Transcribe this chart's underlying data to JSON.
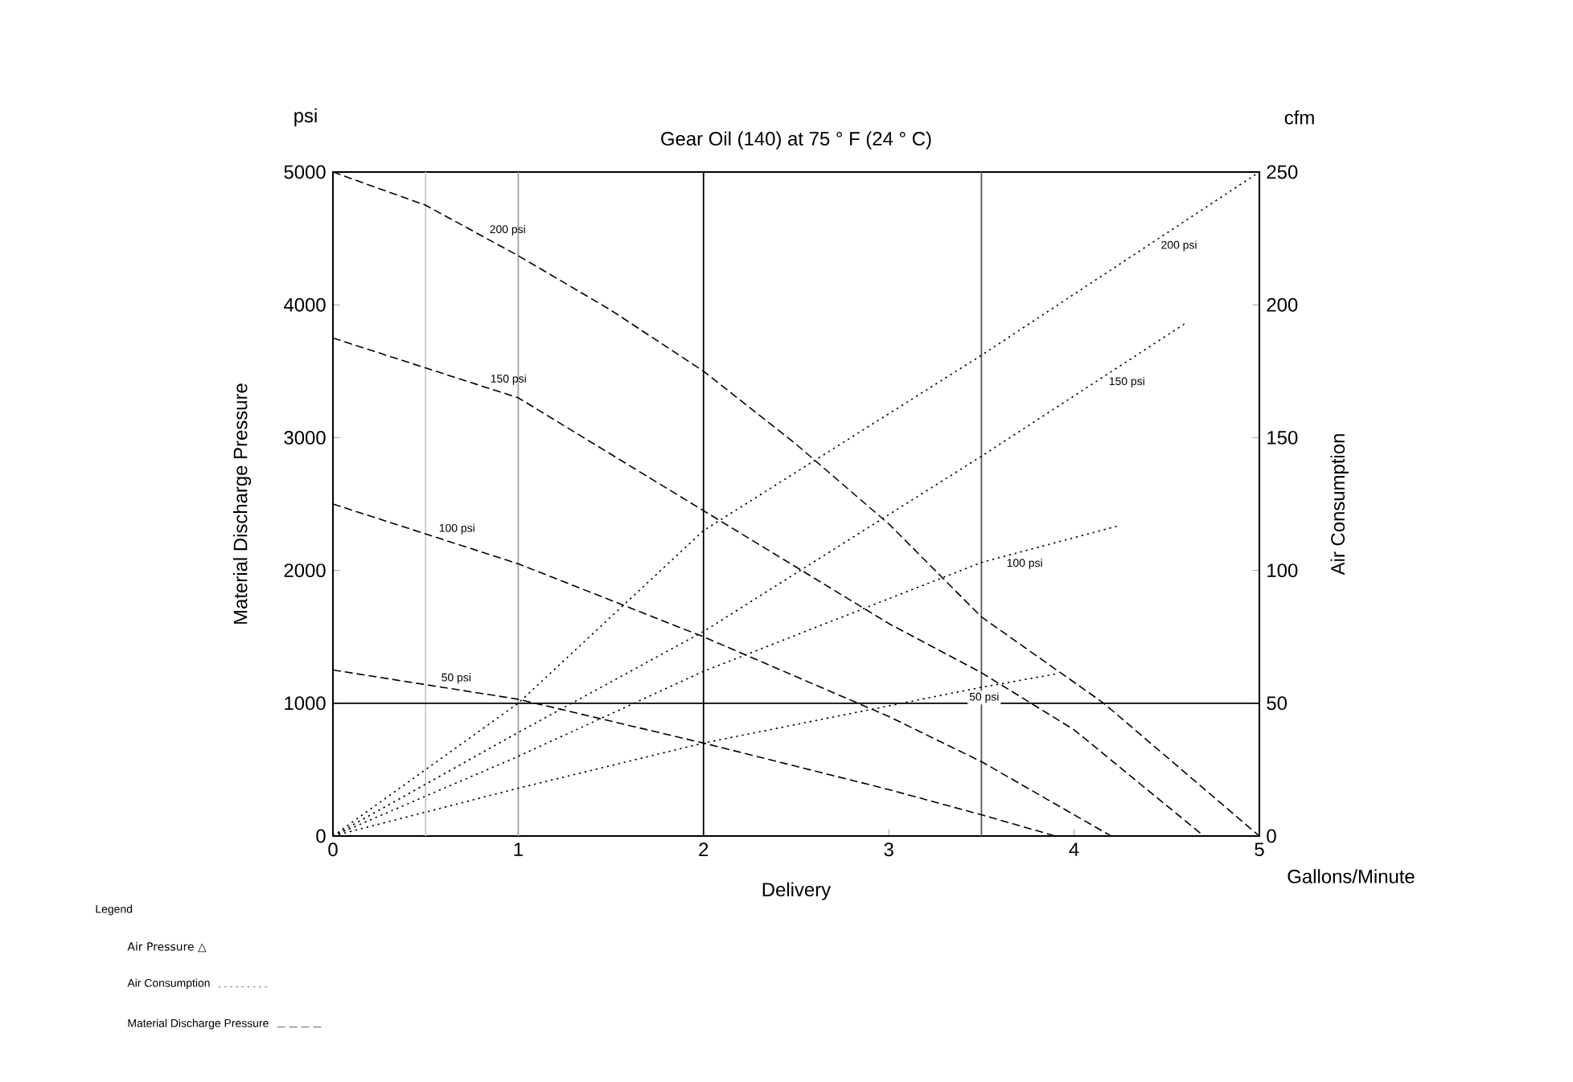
{
  "chart_data": {
    "type": "line",
    "title": "Gear Oil (140) at 75 ° F (24 ° C)",
    "xlabel": "Delivery",
    "ylabel": "Material Discharge Pressure",
    "y2label": "Air Consumption",
    "xlim": [
      0,
      5
    ],
    "xticks": [
      0,
      1,
      2,
      3,
      4,
      5
    ],
    "ylim": [
      0,
      5000
    ],
    "yticks": [
      0,
      1000,
      2000,
      3000,
      4000,
      5000
    ],
    "y2lim": [
      0,
      250
    ],
    "y2ticks": [
      0,
      50,
      100,
      150,
      200,
      250
    ],
    "grid": false,
    "legend": false,
    "marker": "none",
    "series": [
      {
        "name": "200 psi",
        "color": "#000000",
        "line_style": "dashed",
        "x": [
          0,
          0.5,
          1,
          1.5,
          2,
          2.5,
          3,
          3.5,
          4.16,
          5
        ],
        "values": [
          5000,
          4750,
          4370,
          3960,
          3500,
          2950,
          2350,
          1650,
          1000,
          0
        ]
      },
      {
        "name": "150 psi",
        "color": "#000000",
        "line_style": "dashed",
        "x": [
          0,
          1,
          2,
          3,
          3.5,
          4,
          4.7
        ],
        "values": [
          3750,
          3300,
          2450,
          1600,
          1230,
          800,
          0
        ]
      },
      {
        "name": "100 psi",
        "color": "#000000",
        "line_style": "dashed",
        "x": [
          0,
          1,
          2,
          3,
          3.5,
          4.2
        ],
        "values": [
          2500,
          2050,
          1500,
          900,
          560,
          0
        ]
      },
      {
        "name": "50 psi",
        "color": "#000000",
        "line_style": "dashed",
        "x": [
          0,
          1,
          2,
          3,
          3.5,
          3.9
        ],
        "values": [
          1250,
          1030,
          700,
          350,
          160,
          0
        ]
      },
      {
        "name": "200 psi",
        "color": "#000000",
        "line_style": "dotted",
        "axis": "y2",
        "x": [
          0,
          1,
          2,
          3.5,
          5
        ],
        "values": [
          0,
          50,
          115,
          181,
          250
        ]
      },
      {
        "name": "150 psi",
        "color": "#000000",
        "line_style": "dotted",
        "axis": "y2",
        "x": [
          0,
          1,
          2,
          3.5,
          4.6
        ],
        "values": [
          0,
          39,
          77,
          143,
          193
        ]
      },
      {
        "name": "100 psi",
        "color": "#000000",
        "line_style": "dotted",
        "axis": "y2",
        "x": [
          0,
          1,
          2,
          3.5,
          4.25
        ],
        "values": [
          0,
          30,
          62,
          103,
          117
        ]
      },
      {
        "name": "50 psi",
        "color": "#000000",
        "line_style": "dotted",
        "axis": "y2",
        "x": [
          0,
          1,
          2,
          3.5,
          3.9
        ],
        "values": [
          0,
          18,
          35,
          56,
          61
        ]
      }
    ],
    "ref_lines": [
      {
        "axis": "x",
        "value": 0.5,
        "color": "#c8c8c8"
      },
      {
        "axis": "x",
        "value": 1,
        "color": "#a0a0a0"
      },
      {
        "axis": "x",
        "value": 2,
        "color": "#000000"
      },
      {
        "axis": "x",
        "value": 3.5,
        "color": "#555555"
      },
      {
        "axis": "y",
        "value": 1000,
        "color": "#000000"
      }
    ],
    "annotations": [
      "psi",
      "cfm",
      "Gallons/Minute",
      "Legend",
      "Air Pressure △",
      "Air Consumption",
      "Material Discharge Pressure"
    ]
  }
}
